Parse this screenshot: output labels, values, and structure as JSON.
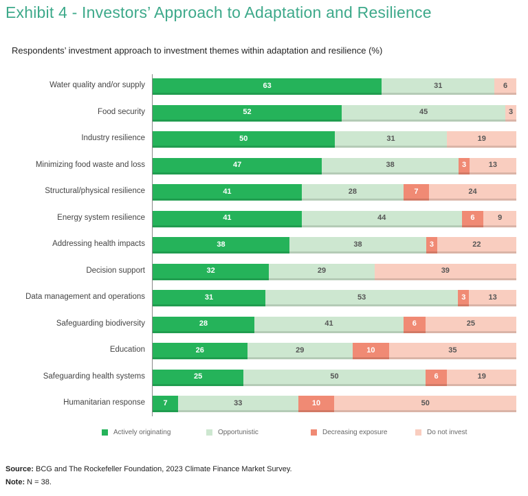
{
  "title": "Exhibit 4 - Investors’ Approach to Adaptation and Resilience",
  "chart_data": {
    "type": "bar",
    "orientation": "horizontal",
    "stacked": true,
    "title": "Respondents’ investment approach to investment themes within adaptation and resilience (%)",
    "categories": [
      "Water quality and/or supply",
      "Food security",
      "Industry resilience",
      "Minimizing food waste and loss",
      "Structural/physical resilience",
      "Energy system resilience",
      "Addressing health impacts",
      "Decision support",
      "Data management and operations",
      "Safeguarding biodiversity",
      "Education",
      "Safeguarding health systems",
      "Humanitarian response"
    ],
    "series": [
      {
        "name": "Actively originating",
        "color": "#25b35a",
        "text_color": "#ffffff",
        "values": [
          63,
          52,
          50,
          47,
          41,
          41,
          38,
          32,
          31,
          28,
          26,
          25,
          7
        ]
      },
      {
        "name": "Opportunistic",
        "color": "#cde7d0",
        "text_color": "#555555",
        "values": [
          31,
          45,
          31,
          38,
          28,
          44,
          38,
          29,
          53,
          41,
          29,
          50,
          33
        ]
      },
      {
        "name": "Decreasing exposure",
        "color": "#f08a74",
        "text_color": "#ffffff",
        "values": [
          0,
          0,
          0,
          3,
          7,
          6,
          3,
          0,
          3,
          6,
          10,
          6,
          10
        ]
      },
      {
        "name": "Do not invest",
        "color": "#f9cdbf",
        "text_color": "#555555",
        "values": [
          6,
          3,
          19,
          13,
          24,
          9,
          22,
          39,
          13,
          25,
          35,
          19,
          50
        ]
      }
    ],
    "legend_position": "bottom",
    "grid": false
  },
  "footer": {
    "source_label": "Source:",
    "source_text": " BCG and The Rockefeller Foundation, 2023 Climate Finance Market Survey.",
    "note_label": "Note:",
    "note_text": " N = 38."
  }
}
